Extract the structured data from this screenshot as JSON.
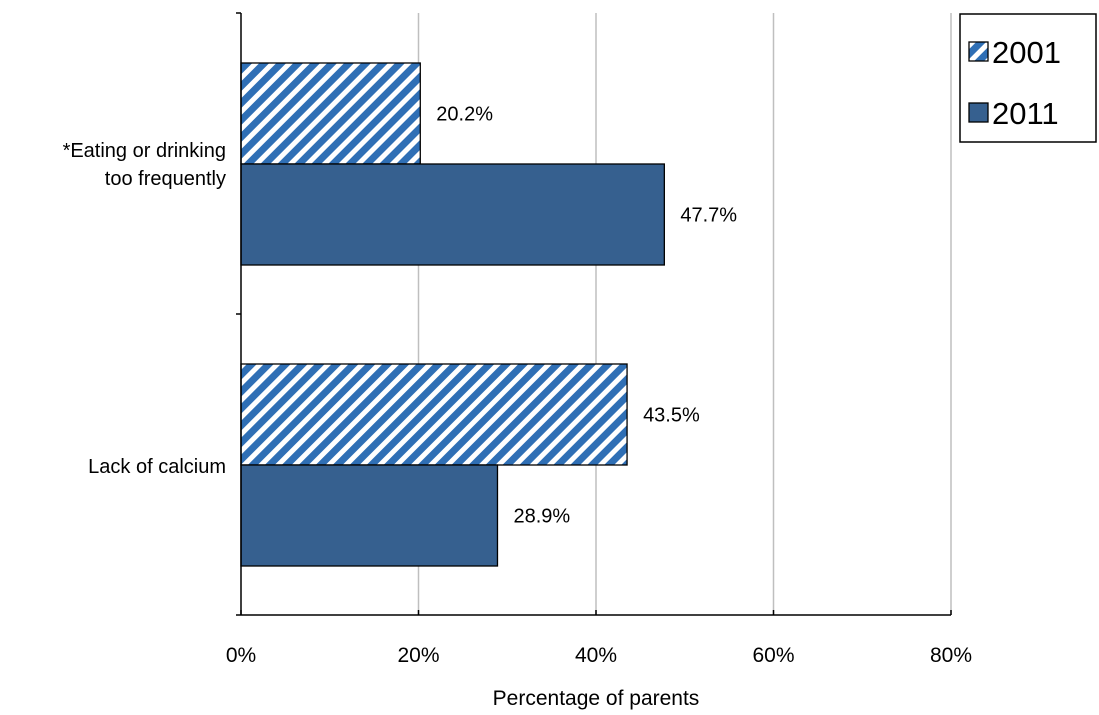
{
  "chart_data": {
    "type": "bar",
    "orientation": "horizontal",
    "categories": [
      "*Eating or drinking too frequently",
      "Lack of calcium"
    ],
    "category_lines": [
      [
        "*Eating or drinking",
        "too frequently"
      ],
      [
        "Lack of calcium"
      ]
    ],
    "series": [
      {
        "name": "2001",
        "values": [
          20.2,
          43.5
        ],
        "labels": [
          "20.2%",
          "43.5%"
        ],
        "color": "#2f6fb5",
        "pattern": "diagonal-stripes"
      },
      {
        "name": "2011",
        "values": [
          47.7,
          28.9
        ],
        "labels": [
          "47.7%",
          "28.9%"
        ],
        "color": "#36608f",
        "pattern": "solid"
      }
    ],
    "xlabel": "Percentage of parents",
    "xlim": [
      0,
      80
    ],
    "xticks": [
      "0%",
      "20%",
      "40%",
      "60%",
      "80%"
    ],
    "grid": true,
    "legend_position": "top-right"
  }
}
